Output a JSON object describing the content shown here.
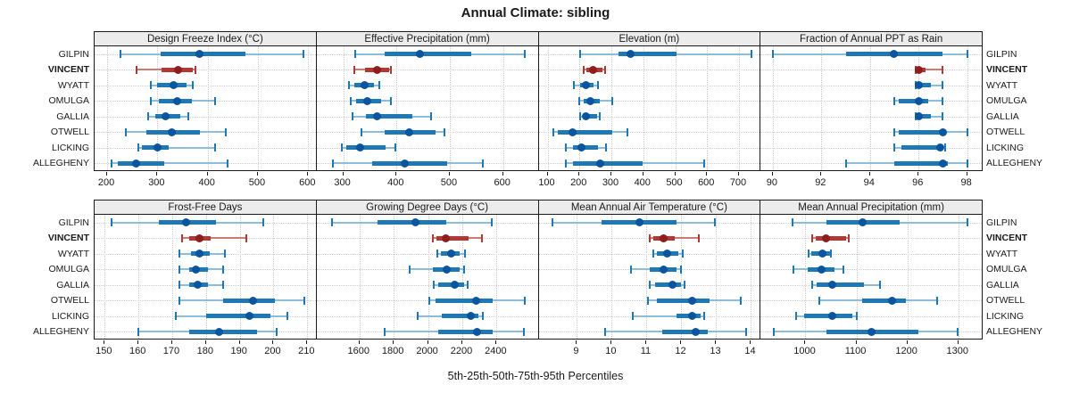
{
  "title": "Annual Climate: sibling",
  "caption": "5th-25th-50th-75th-95th Percentiles",
  "colors": {
    "blue_light": "#8ebcdc",
    "blue_main": "#1f77b4",
    "blue_dark": "#0b559f",
    "red_light": "#cc7a72",
    "red_main": "#b03a33",
    "red_dark": "#8e1d1d",
    "strip_bg": "#ececec",
    "grid": "#c9c9c9",
    "border": "#1a1a1a"
  },
  "chart_data": {
    "type": "dotplot-percentiles",
    "percentiles": [
      "5th",
      "25th",
      "50th",
      "75th",
      "95th"
    ],
    "sites": [
      "GILPIN",
      "VINCENT",
      "WYATT",
      "OMULGA",
      "GALLIA",
      "OTWELL",
      "LICKING",
      "ALLEGHENY"
    ],
    "highlight_site": "VINCENT",
    "legend_position": "none",
    "grid": "dotted",
    "panels": [
      {
        "title": "Design Freeze Index (°C)",
        "ticks": [
          200,
          300,
          400,
          500,
          600
        ],
        "range": [
          175,
          615
        ],
        "values": [
          [
            227,
            306,
            384,
            475,
            590
          ],
          [
            258,
            308,
            341,
            370,
            375
          ],
          [
            286,
            299,
            333,
            358,
            371
          ],
          [
            287,
            302,
            339,
            369,
            414
          ],
          [
            282,
            296,
            317,
            346,
            362
          ],
          [
            237,
            278,
            329,
            384,
            436
          ],
          [
            262,
            270,
            300,
            322,
            414
          ],
          [
            209,
            222,
            258,
            314,
            439
          ]
        ]
      },
      {
        "title": "Effective Precipitation (mm)",
        "ticks": [
          300,
          400,
          500,
          600
        ],
        "range": [
          250,
          665
        ],
        "values": [
          [
            322,
            378,
            444,
            540,
            640
          ],
          [
            321,
            341,
            363,
            386,
            390
          ],
          [
            311,
            321,
            340,
            357,
            367
          ],
          [
            314,
            324,
            345,
            371,
            390
          ],
          [
            317,
            343,
            363,
            430,
            465
          ],
          [
            334,
            377,
            424,
            474,
            490
          ],
          [
            297,
            305,
            332,
            380,
            398
          ],
          [
            280,
            355,
            415,
            495,
            562
          ]
        ]
      },
      {
        "title": "Elevation (m)",
        "ticks": [
          100,
          200,
          300,
          400,
          500,
          600,
          700
        ],
        "range": [
          72,
          765
        ],
        "values": [
          [
            202,
            323,
            361,
            505,
            740
          ],
          [
            213,
            222,
            242,
            272,
            279
          ],
          [
            182,
            202,
            221,
            244,
            258
          ],
          [
            198,
            212,
            233,
            263,
            302
          ],
          [
            202,
            210,
            219,
            255,
            265
          ],
          [
            119,
            133,
            177,
            302,
            349
          ],
          [
            156,
            180,
            205,
            258,
            282
          ],
          [
            156,
            180,
            266,
            398,
            590
          ]
        ]
      },
      {
        "title": "Fraction of Annual PPT as Rain",
        "ticks": [
          90,
          92,
          94,
          96,
          98
        ],
        "range": [
          89.5,
          98.6
        ],
        "values": [
          [
            90,
            93,
            95,
            97,
            98
          ],
          [
            95.9,
            96,
            96,
            96.3,
            97
          ],
          [
            95.9,
            96,
            96,
            96.5,
            97
          ],
          [
            95,
            95.2,
            96,
            96.4,
            97
          ],
          [
            95.9,
            96,
            96,
            96.5,
            97
          ],
          [
            95,
            95.2,
            97,
            97.1,
            98
          ],
          [
            95,
            95.3,
            96.9,
            97,
            97.1
          ],
          [
            93,
            95,
            97,
            97.2,
            98
          ]
        ]
      },
      {
        "title": "Frost-Free Days",
        "ticks": [
          150,
          160,
          170,
          180,
          190,
          200,
          210
        ],
        "range": [
          147,
          212.5
        ],
        "values": [
          [
            152,
            166,
            174,
            183,
            197
          ],
          [
            173,
            175,
            178,
            181.5,
            192
          ],
          [
            172,
            175.5,
            178,
            181,
            185.5
          ],
          [
            172,
            175,
            177,
            180.5,
            185
          ],
          [
            172,
            175,
            177.5,
            180.5,
            185
          ],
          [
            172,
            185,
            194,
            200.5,
            209
          ],
          [
            171,
            180,
            193,
            199,
            204
          ],
          [
            160,
            175,
            184,
            195,
            201
          ]
        ]
      },
      {
        "title": "Growing Degree Days (°C)",
        "ticks": [
          1600,
          1800,
          2000,
          2200,
          2400
        ],
        "range": [
          1350,
          2640
        ],
        "values": [
          [
            1440,
            1705,
            1925,
            2105,
            2370
          ],
          [
            2030,
            2050,
            2105,
            2235,
            2315
          ],
          [
            2055,
            2075,
            2133,
            2185,
            2215
          ],
          [
            1895,
            2030,
            2110,
            2185,
            2210
          ],
          [
            2035,
            2060,
            2158,
            2210,
            2230
          ],
          [
            2005,
            2045,
            2280,
            2375,
            2565
          ],
          [
            1940,
            2080,
            2250,
            2295,
            2320
          ],
          [
            1745,
            2060,
            2285,
            2375,
            2560
          ]
        ]
      },
      {
        "title": "Mean Annual Air Temperature (°C)",
        "ticks": [
          9,
          10,
          11,
          12,
          13,
          14
        ],
        "range": [
          7.9,
          14.25
        ],
        "values": [
          [
            8.3,
            9.7,
            10.8,
            11.85,
            12.95
          ],
          [
            11.1,
            11.2,
            11.5,
            11.8,
            12.5
          ],
          [
            11.2,
            11.3,
            11.6,
            11.9,
            12.05
          ],
          [
            10.55,
            11.1,
            11.5,
            11.85,
            12.0
          ],
          [
            11.1,
            11.25,
            11.75,
            12.0,
            12.1
          ],
          [
            11.05,
            11.3,
            12.3,
            12.8,
            13.7
          ],
          [
            10.6,
            11.85,
            12.3,
            12.55,
            12.65
          ],
          [
            9.8,
            11.45,
            12.4,
            12.75,
            13.85
          ]
        ]
      },
      {
        "title": "Mean Annual Precipitation (mm)",
        "ticks": [
          1000,
          1100,
          1200,
          1300
        ],
        "range": [
          912,
          1346
        ],
        "values": [
          [
            975,
            1042,
            1113,
            1185,
            1318
          ],
          [
            1014,
            1020,
            1041,
            1080,
            1085
          ],
          [
            1006,
            1012,
            1033,
            1048,
            1050
          ],
          [
            977,
            1005,
            1031,
            1057,
            1075
          ],
          [
            1013,
            1022,
            1053,
            1115,
            1147
          ],
          [
            1028,
            1112,
            1170,
            1197,
            1258
          ],
          [
            981,
            997,
            1052,
            1092,
            1100
          ],
          [
            938,
            1042,
            1130,
            1222,
            1298
          ]
        ]
      }
    ]
  }
}
